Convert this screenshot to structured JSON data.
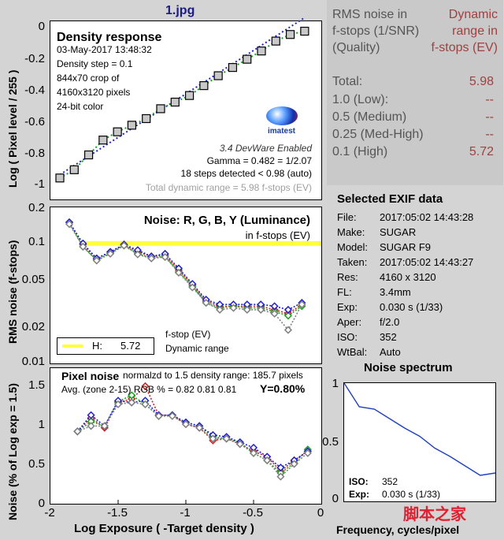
{
  "window_title": "1.jpg",
  "density_panel": {
    "title": "Density response",
    "info_lines": [
      "03-May-2017 13:48:32",
      "Density step = 0.1",
      "844x70 crop of",
      "4160x3120 pixels",
      "24-bit color"
    ],
    "logo_text": "imatest",
    "devware": "3.4  DevWare Enabled",
    "gamma": "Gamma = 0.482 = 1/2.07",
    "steps": "18 steps detected < 0.98 (auto)",
    "total_dr": "Total dynamic range = 5.98 f-stops (EV)",
    "ylabel": "Log ( Pixel level / 255 )"
  },
  "noise_panel": {
    "title": "Noise: R, G, B, Y (Luminance)",
    "subtitle": "in f-stops (EV)",
    "ylabel": "RMS noise (f-stops)",
    "legend_label": "H:",
    "legend_value": "5.72",
    "note_line1": "f-stop (EV)",
    "note_line2": "Dynamic range"
  },
  "pixel_panel": {
    "title": "Pixel noise",
    "norm_text": "normalzd to 1.5 density range: 185.7 pixels",
    "avg_text": "Avg. (zone 2-15) RGB % = 0.82  0.81  0.81",
    "y_text": "Y=0.80%",
    "ylabel": "Noise (% of Log exp = 1.5)",
    "xlabel": "Log Exposure ( -Target density )"
  },
  "rms_table": {
    "header_left": [
      "RMS noise in",
      "f-stops (1/SNR)",
      "(Quality)"
    ],
    "header_right": [
      "Dynamic",
      "range in",
      "f-stops (EV)"
    ],
    "rows": [
      {
        "label": "Total:",
        "value": "5.98"
      },
      {
        "label": "1.0  (Low):",
        "value": "--"
      },
      {
        "label": "0.5  (Medium)",
        "value": "--"
      },
      {
        "label": "0.25  (Med-High)",
        "value": "--"
      },
      {
        "label": "0.1  (High)",
        "value": "5.72"
      }
    ]
  },
  "exif": {
    "title": "Selected EXIF data",
    "rows": [
      {
        "k": "File:",
        "v": "2017:05:02 14:43:28"
      },
      {
        "k": "Make:",
        "v": "SUGAR"
      },
      {
        "k": "Model:",
        "v": "SUGAR F9"
      },
      {
        "k": "Taken:",
        "v": "2017:05:02 14:43:27"
      },
      {
        "k": "Res:",
        "v": "4160 x 3120"
      },
      {
        "k": "FL:",
        "v": "3.4mm"
      },
      {
        "k": "Exp:",
        "v": "0.030 s  (1/33)"
      },
      {
        "k": "Aper:",
        "v": "f/2.0"
      },
      {
        "k": "ISO:",
        "v": "352"
      },
      {
        "k": "WtBal:",
        "v": "Auto"
      }
    ]
  },
  "spectrum_panel": {
    "title": "Noise spectrum",
    "iso_label": "ISO:",
    "iso_value": "352",
    "exp_label": "Exp:",
    "exp_value": "0.030 s  (1/33)",
    "xlabel": "Frequency, cycles/pixel"
  },
  "watermark": "脚本之家",
  "colors": {
    "red": "#d02020",
    "green": "#20a020",
    "blue": "#2020d0",
    "gray": "#808080",
    "yellow": "#ffff40",
    "spectrum": "#2040c0"
  },
  "chart_data": [
    {
      "type": "scatter",
      "name_hint": "density",
      "x": [
        -1.9,
        -1.8,
        -1.7,
        -1.6,
        -1.5,
        -1.4,
        -1.3,
        -1.2,
        -1.1,
        -1.0,
        -0.9,
        -0.8,
        -0.7,
        -0.6,
        -0.5,
        -0.4,
        -0.3,
        -0.2
      ],
      "values": [
        -0.92,
        -0.87,
        -0.78,
        -0.69,
        -0.64,
        -0.6,
        -0.56,
        -0.5,
        -0.46,
        -0.42,
        -0.36,
        -0.3,
        -0.25,
        -0.2,
        -0.15,
        -0.09,
        -0.05,
        -0.03
      ],
      "xlim": [
        -1.9,
        -0.15
      ],
      "ylim": [
        -1.05,
        0.03
      ],
      "yticks": [
        "0",
        "-0.2",
        "-0.4",
        "-0.6",
        "-0.8",
        "-1"
      ]
    },
    {
      "type": "line",
      "name_hint": "rms-noise",
      "x": [
        -1.9,
        -1.8,
        -1.7,
        -1.6,
        -1.5,
        -1.4,
        -1.3,
        -1.2,
        -1.1,
        -1.0,
        -0.9,
        -0.8,
        -0.7,
        -0.6,
        -0.5,
        -0.4,
        -0.3,
        -0.2
      ],
      "series": [
        {
          "color": "red",
          "values": [
            0.15,
            0.098,
            0.075,
            0.085,
            0.098,
            0.085,
            0.078,
            0.08,
            0.06,
            0.045,
            0.033,
            0.03,
            0.03,
            0.03,
            0.03,
            0.028,
            0.026,
            0.031
          ]
        },
        {
          "color": "green",
          "values": [
            0.15,
            0.094,
            0.073,
            0.083,
            0.097,
            0.082,
            0.076,
            0.078,
            0.058,
            0.044,
            0.032,
            0.029,
            0.03,
            0.029,
            0.029,
            0.027,
            0.025,
            0.03
          ]
        },
        {
          "color": "blue",
          "values": [
            0.15,
            0.1,
            0.075,
            0.085,
            0.098,
            0.088,
            0.078,
            0.082,
            0.062,
            0.046,
            0.034,
            0.031,
            0.031,
            0.031,
            0.031,
            0.03,
            0.028,
            0.032
          ]
        },
        {
          "color": "gray",
          "values": [
            0.145,
            0.094,
            0.072,
            0.082,
            0.096,
            0.081,
            0.075,
            0.077,
            0.057,
            0.043,
            0.032,
            0.028,
            0.029,
            0.028,
            0.028,
            0.026,
            0.019,
            0.031
          ]
        }
      ],
      "hline": 0.1,
      "ylim": [
        0.01,
        0.2
      ],
      "yticks": [
        "0.2",
        "0.1",
        "0.05",
        "0.02",
        "0.01"
      ]
    },
    {
      "type": "line",
      "name_hint": "pixel-noise",
      "x": [
        -1.9,
        -1.8,
        -1.7,
        -1.6,
        -1.5,
        -1.4,
        -1.3,
        -1.2,
        -1.1,
        -1.0,
        -0.9,
        -0.8,
        -0.7,
        -0.6,
        -0.5,
        -0.4,
        -0.3,
        -0.2
      ],
      "series": [
        {
          "color": "red",
          "values": [
            0.8,
            0.95,
            0.84,
            1.12,
            1.16,
            1.3,
            0.98,
            0.98,
            0.88,
            0.84,
            0.7,
            0.72,
            0.66,
            0.58,
            0.52,
            0.36,
            0.48,
            0.58
          ]
        },
        {
          "color": "green",
          "values": [
            0.8,
            0.91,
            0.86,
            1.13,
            1.2,
            1.1,
            0.97,
            0.98,
            0.9,
            0.86,
            0.74,
            0.72,
            0.68,
            0.56,
            0.48,
            0.34,
            0.45,
            0.6
          ]
        },
        {
          "color": "blue",
          "values": [
            0.8,
            0.98,
            0.86,
            1.14,
            1.12,
            1.14,
            0.98,
            0.98,
            0.9,
            0.86,
            0.76,
            0.74,
            0.68,
            0.62,
            0.52,
            0.4,
            0.48,
            0.58
          ]
        },
        {
          "color": "gray",
          "values": [
            0.8,
            0.86,
            0.86,
            1.1,
            1.12,
            1.1,
            0.97,
            0.97,
            0.88,
            0.84,
            0.72,
            0.72,
            0.66,
            0.56,
            0.48,
            0.3,
            0.44,
            0.56
          ]
        }
      ],
      "xlim": [
        -2.0,
        0.0
      ],
      "ylim": [
        0,
        1.5
      ],
      "xticks": [
        "-2",
        "-1.5",
        "-1",
        "-0.5",
        "0"
      ],
      "yticks": [
        "1.5",
        "1",
        "0.5",
        "0"
      ]
    },
    {
      "type": "line",
      "name_hint": "noise-spectrum",
      "x": [
        0,
        0.05,
        0.1,
        0.15,
        0.2,
        0.25,
        0.3,
        0.35,
        0.4,
        0.45,
        0.5
      ],
      "values": [
        1.0,
        0.8,
        0.78,
        0.7,
        0.62,
        0.55,
        0.45,
        0.38,
        0.3,
        0.22,
        0.24
      ],
      "ylim": [
        0,
        1.0
      ],
      "yticks": [
        "1",
        "0.5",
        "0"
      ]
    }
  ]
}
